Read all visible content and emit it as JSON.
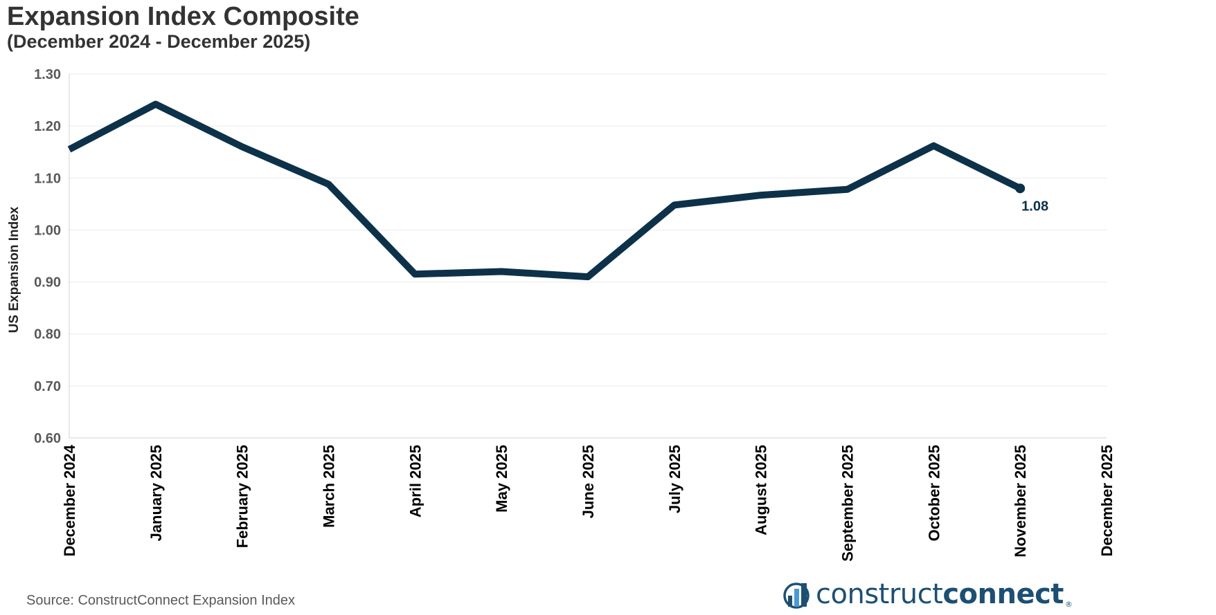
{
  "title": "Expansion Index Composite",
  "subtitle": "(December 2024 - December 2025)",
  "source": "Source: ConstructConnect Expansion Index",
  "logo": {
    "light": "construct",
    "bold": "connect",
    "registered": "®",
    "icon": "building-chart-icon"
  },
  "colors": {
    "line": "#0d3149",
    "grid": "#ececec",
    "axis": "#d0d0d0",
    "brand": "#1d4f73",
    "brand_accent": "#4a9bd1"
  },
  "chart_data": {
    "type": "line",
    "ylabel": "US Expansion Index",
    "ylim": [
      0.6,
      1.3
    ],
    "yticks": [
      "0.60",
      "0.70",
      "0.80",
      "0.90",
      "1.00",
      "1.10",
      "1.20",
      "1.30"
    ],
    "categories": [
      "December 2024",
      "January 2025",
      "February 2025",
      "March 2025",
      "April 2025",
      "May 2025",
      "June 2025",
      "July 2025",
      "August 2025",
      "September 2025",
      "October 2025",
      "November 2025",
      "December 2025"
    ],
    "values": [
      1.155,
      1.242,
      1.16,
      1.088,
      0.915,
      0.92,
      0.91,
      1.048,
      1.067,
      1.078,
      1.162,
      1.08,
      null
    ],
    "grid": true,
    "endpoint_label": "1.08"
  }
}
